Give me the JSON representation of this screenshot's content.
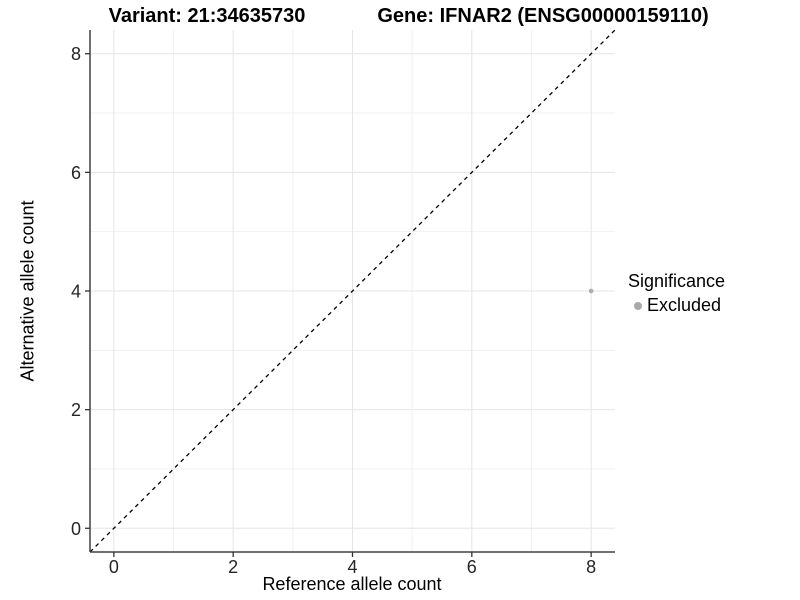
{
  "titles": {
    "variant": "Variant: 21:34635730",
    "gene": "Gene: IFNAR2 (ENSG00000159110)"
  },
  "axes": {
    "x_label": "Reference allele count",
    "y_label": "Alternative allele count"
  },
  "legend": {
    "title": "Significance",
    "items": [
      {
        "label": "Excluded",
        "color": "#a9a9a9"
      }
    ]
  },
  "chart_data": {
    "type": "scatter",
    "title": "Variant: 21:34635730 — Gene: IFNAR2 (ENSG00000159110)",
    "xlabel": "Reference allele count",
    "ylabel": "Alternative allele count",
    "xlim": [
      -0.4,
      8.4
    ],
    "ylim": [
      -0.4,
      8.4
    ],
    "x_ticks": [
      0,
      2,
      4,
      6,
      8
    ],
    "y_ticks": [
      0,
      2,
      4,
      6,
      8
    ],
    "x_minor_ticks": [
      1,
      3,
      5,
      7
    ],
    "y_minor_ticks": [
      1,
      3,
      5,
      7
    ],
    "grid": "major+minor",
    "legend_position": "right",
    "series": [
      {
        "name": "Excluded",
        "color": "#a9a9a9",
        "marker": "circle",
        "size": 2.3,
        "points": [
          [
            8,
            4
          ]
        ]
      }
    ],
    "reference_line": {
      "type": "identity",
      "style": "dashed",
      "color": "#000000",
      "from": [
        -0.4,
        -0.4
      ],
      "to": [
        8.4,
        8.4
      ]
    }
  },
  "style": {
    "grid_major": "#e5e5e5",
    "grid_minor": "#f1f1f1",
    "axis_line": "#404040",
    "tick": "#333333",
    "tick_label": "#262626",
    "point_fill": "#acacac"
  }
}
